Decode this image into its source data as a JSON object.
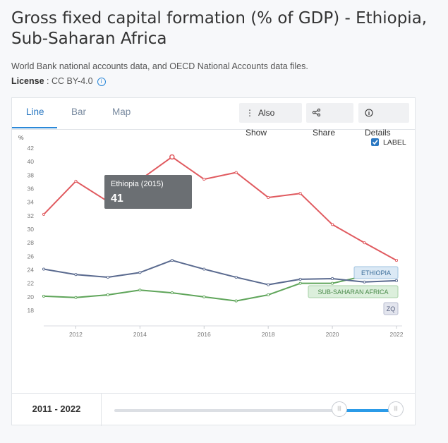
{
  "header": {
    "title": "Gross fixed capital formation (% of GDP) - Ethiopia, Sub-Saharan Africa",
    "source": "World Bank national accounts data, and OECD National Accounts data files.",
    "license_label": "License",
    "license_value": " : CC BY-4.0"
  },
  "tabs": [
    {
      "label": "Line",
      "active": true
    },
    {
      "label": "Bar",
      "active": false
    },
    {
      "label": "Map",
      "active": false
    }
  ],
  "actions": {
    "also_show": "Also Show",
    "share": "Share",
    "details": "Details"
  },
  "label_toggle": {
    "label": "LABEL",
    "checked": true
  },
  "tooltip": {
    "title": "Ethiopia (2015)",
    "value": "41"
  },
  "footer": {
    "range": "2011 - 2022"
  },
  "chart_data": {
    "type": "line",
    "title": "Gross fixed capital formation (% of GDP) - Ethiopia, Sub-Saharan Africa",
    "ylabel": "%",
    "ylim": [
      18,
      42
    ],
    "xlim": [
      2011,
      2022
    ],
    "yticks": [
      "18",
      "20",
      "22",
      "24",
      "26",
      "28",
      "30",
      "32",
      "34",
      "36",
      "38",
      "40",
      "42"
    ],
    "xticks": [
      "2012",
      "2014",
      "2016",
      "2018",
      "2020",
      "2022"
    ],
    "grid": false,
    "series": [
      {
        "name": "ETHIOPIA",
        "color": "#e05a5f",
        "x": [
          2011,
          2012,
          2013,
          2014,
          2015,
          2016,
          2017,
          2018,
          2019,
          2020,
          2021,
          2022
        ],
        "values": [
          32.2,
          37.1,
          34.1,
          37.3,
          40.7,
          37.4,
          38.4,
          34.7,
          35.3,
          30.7,
          28.0,
          25.4
        ]
      },
      {
        "name": "SUB-SAHARAN AFRICA",
        "color": "#5fa55a",
        "x": [
          2011,
          2012,
          2013,
          2014,
          2015,
          2016,
          2017,
          2018,
          2019,
          2020,
          2021
        ],
        "values": [
          20.1,
          19.9,
          20.3,
          21.0,
          20.6,
          20.0,
          19.4,
          20.3,
          22.0,
          22.0,
          23.1
        ]
      },
      {
        "name": "ZQ",
        "color": "#5a6a8f",
        "x": [
          2011,
          2012,
          2013,
          2014,
          2015,
          2016,
          2017,
          2018,
          2019,
          2020,
          2021,
          2022
        ],
        "values": [
          24.1,
          23.3,
          22.9,
          23.6,
          25.4,
          24.1,
          22.9,
          21.8,
          22.6,
          22.7,
          22.2,
          22.4
        ]
      }
    ],
    "series_labels": {
      "ETHIOPIA": {
        "fill": "#dbe9f5",
        "stroke": "#9fc3e0",
        "text": "#3b6d99"
      },
      "SUB-SAHARAN AFRICA": {
        "fill": "#dcefdc",
        "stroke": "#a7d2a7",
        "text": "#4a8a4a"
      },
      "ZQ": {
        "fill": "#e3e5ee",
        "stroke": "#b8bdd0",
        "text": "#555f7d"
      }
    }
  }
}
